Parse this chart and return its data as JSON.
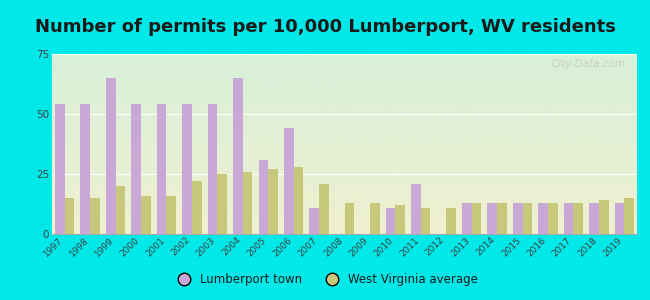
{
  "title": "Number of permits per 10,000 Lumberport, WV residents",
  "years": [
    1997,
    1998,
    1999,
    2000,
    2001,
    2002,
    2003,
    2004,
    2005,
    2006,
    2007,
    2008,
    2009,
    2010,
    2011,
    2012,
    2013,
    2014,
    2015,
    2016,
    2017,
    2018,
    2019
  ],
  "lumberport": [
    54,
    54,
    65,
    54,
    54,
    54,
    54,
    65,
    31,
    44,
    11,
    0,
    0,
    11,
    21,
    0,
    13,
    13,
    13,
    13,
    13,
    13,
    13
  ],
  "wv_average": [
    15,
    15,
    20,
    16,
    16,
    22,
    25,
    26,
    27,
    28,
    21,
    13,
    13,
    12,
    11,
    11,
    13,
    13,
    13,
    13,
    13,
    14,
    15
  ],
  "lumberport_color": "#c9a8d8",
  "wv_color": "#c8c87a",
  "bg_color": "#00e8e8",
  "plot_bg_top": "#d8f0d8",
  "plot_bg_bottom": "#f0f0d0",
  "ylim": [
    0,
    75
  ],
  "yticks": [
    0,
    25,
    50,
    75
  ],
  "bar_width": 0.38,
  "legend_lumberport": "Lumberport town",
  "legend_wv": "West Virginia average",
  "title_fontsize": 13,
  "watermark": "City-Data.com"
}
